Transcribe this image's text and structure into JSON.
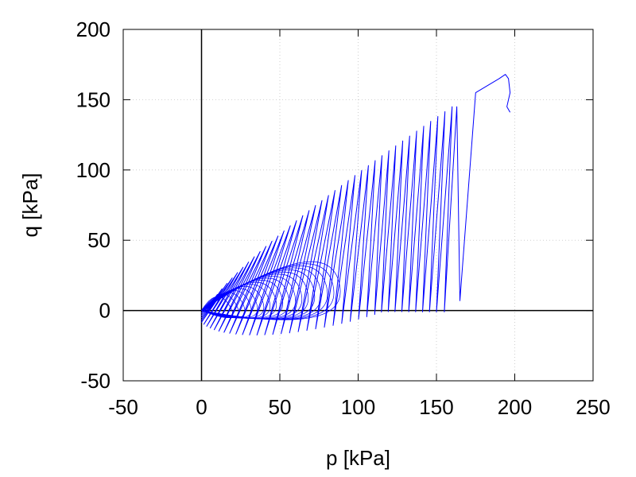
{
  "chart_data": {
    "type": "line",
    "title": "",
    "xlabel": "p [kPa]",
    "ylabel": "q [kPa]",
    "xlim": [
      -50,
      250
    ],
    "ylim": [
      -50,
      200
    ],
    "xticks": [
      -50,
      0,
      50,
      100,
      150,
      200,
      250
    ],
    "yticks": [
      -50,
      0,
      50,
      100,
      150,
      200
    ],
    "x_tick_labels": [
      "-50",
      "0",
      "50",
      "100",
      "150",
      "200",
      "250"
    ],
    "y_tick_labels": [
      "-50",
      "0",
      "50",
      "100",
      "150",
      "200"
    ],
    "grid": true,
    "zero_lines": true,
    "legend": false,
    "series": [
      {
        "color": "#0000ff",
        "description": "cyclic stress path from near origin to failure",
        "cycles": [
          {
            "p_low": 0,
            "q_low": 0,
            "p_high": 5,
            "q_high": 3
          },
          {
            "p_low": 155,
            "q_low": -1,
            "p_high": 163,
            "q_high": 145
          },
          {
            "p_low": 165,
            "q_low": 7,
            "p_high": 175,
            "q_high": 155
          }
        ],
        "end_points": [
          [
            190,
            165
          ],
          [
            194,
            168
          ],
          [
            196,
            165
          ],
          [
            197,
            155
          ],
          [
            195,
            145
          ],
          [
            197,
            141
          ]
        ],
        "n_cycles": 40,
        "max_p": 197,
        "max_q": 168,
        "min_q": -18
      }
    ]
  }
}
